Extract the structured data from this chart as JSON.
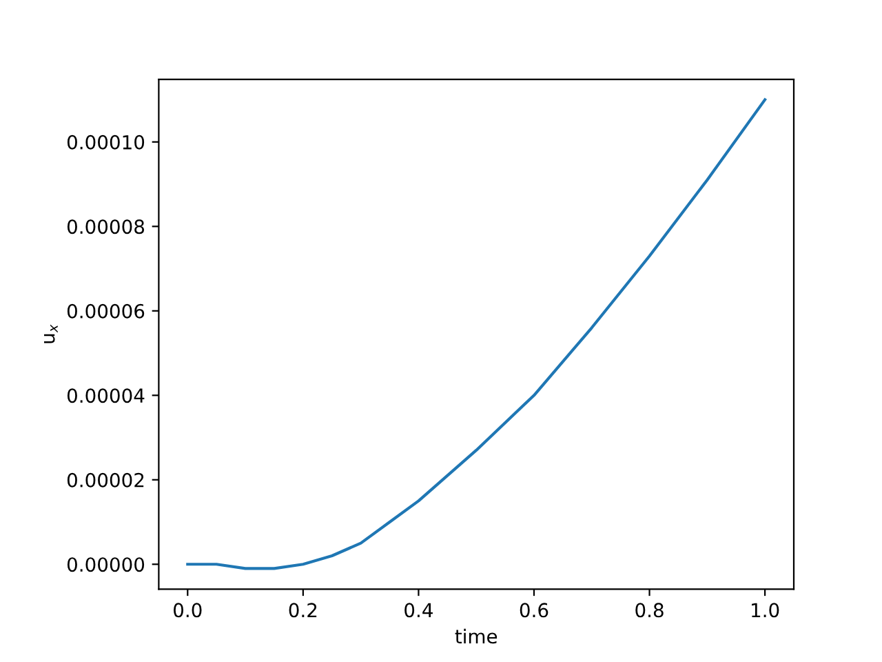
{
  "chart_data": {
    "type": "line",
    "xlabel": "time",
    "ylabel": "u$_{x}$",
    "x": [
      0.0,
      0.05,
      0.1,
      0.12,
      0.15,
      0.2,
      0.25,
      0.3,
      0.35,
      0.4,
      0.5,
      0.6,
      0.7,
      0.8,
      0.9,
      1.0
    ],
    "series": [
      {
        "color": "#1f77b4",
        "values": [
          0.0,
          0.0,
          -1e-06,
          -1e-06,
          -1e-06,
          0.0,
          2e-06,
          5e-06,
          1e-05,
          1.5e-05,
          2.7e-05,
          4e-05,
          5.6e-05,
          7.3e-05,
          9.1e-05,
          0.00011
        ]
      }
    ],
    "xlim": [
      -0.05,
      1.05
    ],
    "ylim": [
      -5.9e-06,
      0.0001148
    ],
    "xticks": [
      {
        "value": 0,
        "label": "0.0"
      },
      {
        "value": 0.2,
        "label": "0.2"
      },
      {
        "value": 0.4,
        "label": "0.4"
      },
      {
        "value": 0.6,
        "label": "0.6"
      },
      {
        "value": 0.8,
        "label": "0.8"
      },
      {
        "value": 1,
        "label": "1.0"
      }
    ],
    "yticks": [
      {
        "value": 0,
        "label": "0.00000"
      },
      {
        "value": 2e-05,
        "label": "0.00002"
      },
      {
        "value": 4e-05,
        "label": "0.00004"
      },
      {
        "value": 6e-05,
        "label": "0.00006"
      },
      {
        "value": 8e-05,
        "label": "0.00008"
      },
      {
        "value": 0.0001,
        "label": "0.00010"
      }
    ],
    "grid": false,
    "legend": false,
    "marker": "none",
    "line_style": "solid"
  }
}
